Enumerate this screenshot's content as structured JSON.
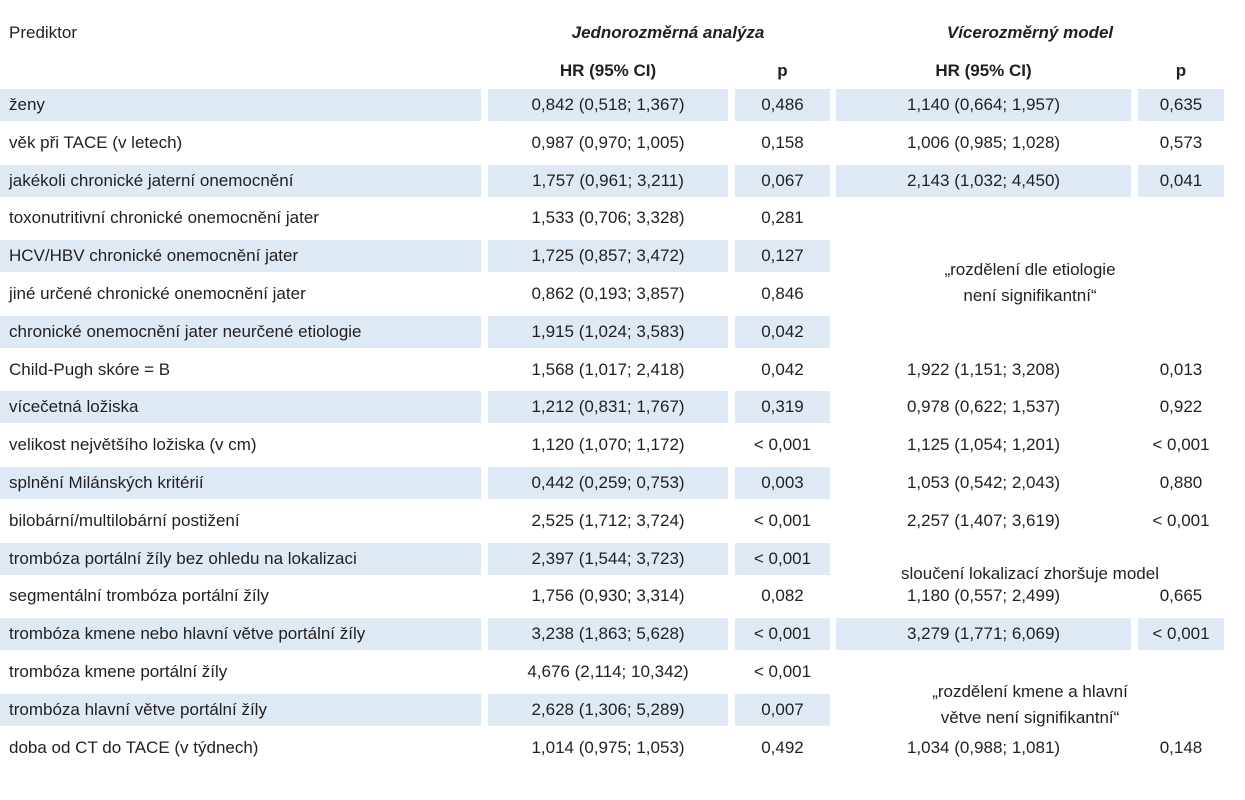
{
  "header": {
    "predictor": "Prediktor",
    "group_uni": "Jednorozměrná analýza",
    "group_multi": "Vícerozměrný model",
    "hr_uni": "HR (95% CI)",
    "p_uni": "p",
    "hr_multi": "HR (95% CI)",
    "p_multi": "p"
  },
  "rows": [
    {
      "predictor": "ženy",
      "uni_hr": "0,842 (0,518; 1,367)",
      "uni_p": "0,486",
      "multi_hr": "1,140 (0,664; 1,957)",
      "multi_p": "0,635"
    },
    {
      "predictor": "věk při TACE (v letech)",
      "uni_hr": "0,987 (0,970; 1,005)",
      "uni_p": "0,158",
      "multi_hr": "1,006 (0,985; 1,028)",
      "multi_p": "0,573"
    },
    {
      "predictor": "jakékoli chronické jaterní onemocnění",
      "uni_hr": "1,757 (0,961; 3,211)",
      "uni_p": "0,067",
      "multi_hr": "2,143 (1,032; 4,450)",
      "multi_p": "0,041"
    },
    {
      "predictor": "toxonutritivní chronické onemocnění jater",
      "uni_hr": "1,533 (0,706; 3,328)",
      "uni_p": "0,281",
      "multi_hr": "",
      "multi_p": ""
    },
    {
      "predictor": "HCV/HBV chronické onemocnění jater",
      "uni_hr": "1,725 (0,857; 3,472)",
      "uni_p": "0,127",
      "multi_hr": "",
      "multi_p": ""
    },
    {
      "predictor": "jiné určené chronické onemocnění jater",
      "uni_hr": "0,862 (0,193; 3,857)",
      "uni_p": "0,846",
      "multi_hr": "",
      "multi_p": ""
    },
    {
      "predictor": "chronické onemocnění jater neurčené etiologie",
      "uni_hr": "1,915 (1,024; 3,583)",
      "uni_p": "0,042",
      "multi_hr": "",
      "multi_p": ""
    },
    {
      "predictor": "Child-Pugh skóre = B",
      "uni_hr": "1,568 (1,017; 2,418)",
      "uni_p": "0,042",
      "multi_hr": "1,922 (1,151; 3,208)",
      "multi_p": "0,013"
    },
    {
      "predictor": "vícečetná ložiska",
      "uni_hr": "1,212 (0,831; 1,767)",
      "uni_p": "0,319",
      "multi_hr": "0,978 (0,622; 1,537)",
      "multi_p": "0,922"
    },
    {
      "predictor": "velikost největšího ložiska (v cm)",
      "uni_hr": "1,120 (1,070; 1,172)",
      "uni_p": "< 0,001",
      "multi_hr": "1,125 (1,054; 1,201)",
      "multi_p": "< 0,001"
    },
    {
      "predictor": "splnění Milánských kritérií",
      "uni_hr": "0,442 (0,259; 0,753)",
      "uni_p": "0,003",
      "multi_hr": "1,053 (0,542; 2,043)",
      "multi_p": "0,880"
    },
    {
      "predictor": "bilobární/multilobární postižení",
      "uni_hr": "2,525 (1,712; 3,724)",
      "uni_p": "< 0,001",
      "multi_hr": "2,257 (1,407; 3,619)",
      "multi_p": "< 0,001"
    },
    {
      "predictor": "trombóza portální žíly bez ohledu na lokalizaci",
      "uni_hr": "2,397 (1,544; 3,723)",
      "uni_p": "< 0,001",
      "multi_hr": "",
      "multi_p": ""
    },
    {
      "predictor": "segmentální trombóza portální žíly",
      "uni_hr": "1,756 (0,930; 3,314)",
      "uni_p": "0,082",
      "multi_hr": "1,180 (0,557; 2,499)",
      "multi_p": "0,665"
    },
    {
      "predictor": "trombóza kmene nebo hlavní větve portální žíly",
      "uni_hr": "3,238 (1,863; 5,628)",
      "uni_p": "< 0,001",
      "multi_hr": "3,279 (1,771; 6,069)",
      "multi_p": "< 0,001"
    },
    {
      "predictor": "trombóza kmene portální žíly",
      "uni_hr": "4,676 (2,114; 10,342)",
      "uni_p": "< 0,001",
      "multi_hr": "",
      "multi_p": ""
    },
    {
      "predictor": "trombóza hlavní větve portální žíly",
      "uni_hr": "2,628 (1,306; 5,289)",
      "uni_p": "0,007",
      "multi_hr": "",
      "multi_p": ""
    },
    {
      "predictor": "doba od CT do TACE (v týdnech)",
      "uni_hr": "1,014 (0,975; 1,053)",
      "uni_p": "0,492",
      "multi_hr": "1,034 (0,988; 1,081)",
      "multi_p": "0,148"
    }
  ],
  "notes": {
    "etiology": "„rozdělení dle etiologie\nnení signifikantní“",
    "merge": "sloučení lokalizací zhoršuje model",
    "trunk": "„rozdělení kmene a hlavní\nvětve není signifikantní“"
  },
  "colors": {
    "row_shade": "#dfe8f5",
    "text": "#231f20"
  }
}
